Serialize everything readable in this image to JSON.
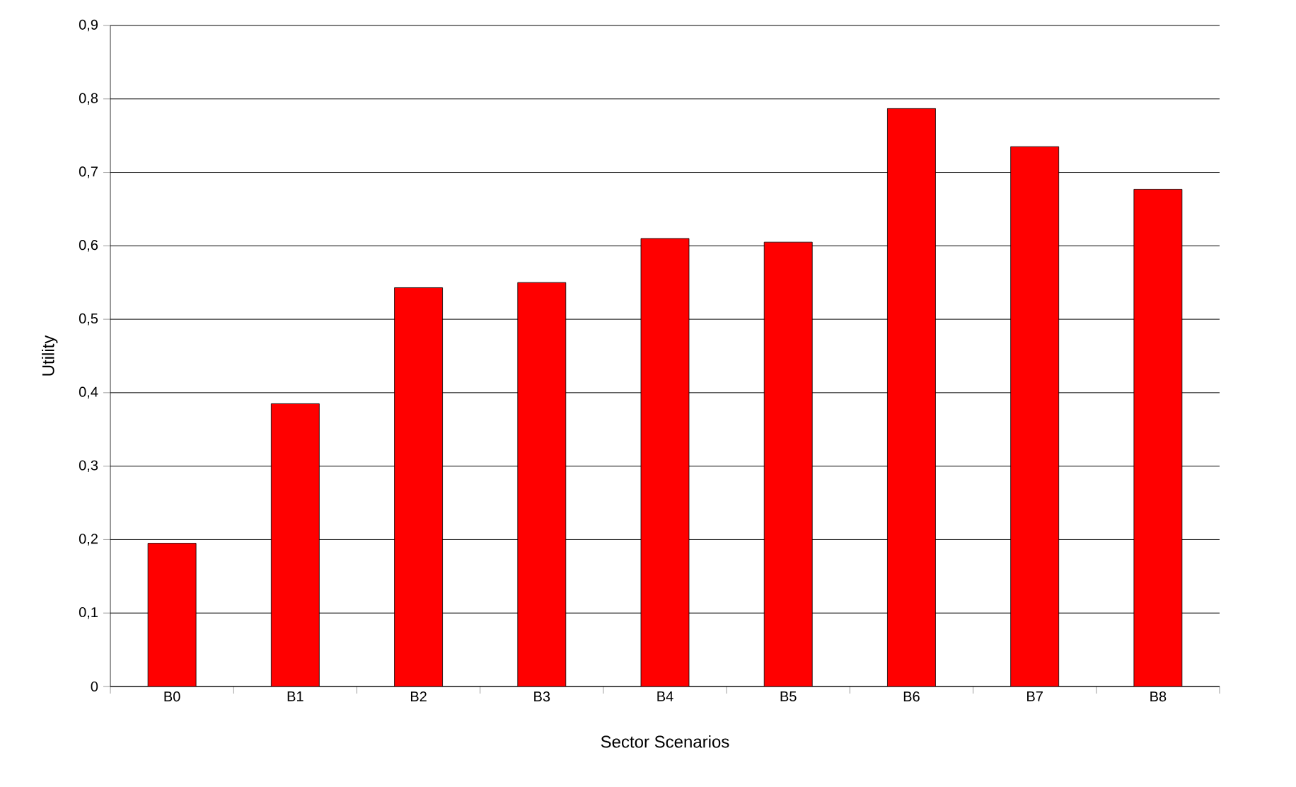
{
  "chart_data": {
    "type": "bar",
    "xlabel": "Sector Scenarios",
    "ylabel": "Utility",
    "categories": [
      "B0",
      "B1",
      "B2",
      "B3",
      "B4",
      "B5",
      "B6",
      "B7",
      "B8"
    ],
    "values": [
      0.195,
      0.385,
      0.543,
      0.55,
      0.61,
      0.605,
      0.787,
      0.735,
      0.677
    ],
    "color": "#ff0000",
    "ylim": [
      0,
      0.9
    ],
    "yticks": [
      {
        "value": 0,
        "label": "0"
      },
      {
        "value": 0.1,
        "label": "0,1"
      },
      {
        "value": 0.2,
        "label": "0,2"
      },
      {
        "value": 0.3,
        "label": "0,3"
      },
      {
        "value": 0.4,
        "label": "0,4"
      },
      {
        "value": 0.5,
        "label": "0,5"
      },
      {
        "value": 0.6,
        "label": "0,6"
      },
      {
        "value": 0.7,
        "label": "0,7"
      },
      {
        "value": 0.8,
        "label": "0,8"
      },
      {
        "value": 0.9,
        "label": "0,9"
      }
    ],
    "grid": "y"
  }
}
